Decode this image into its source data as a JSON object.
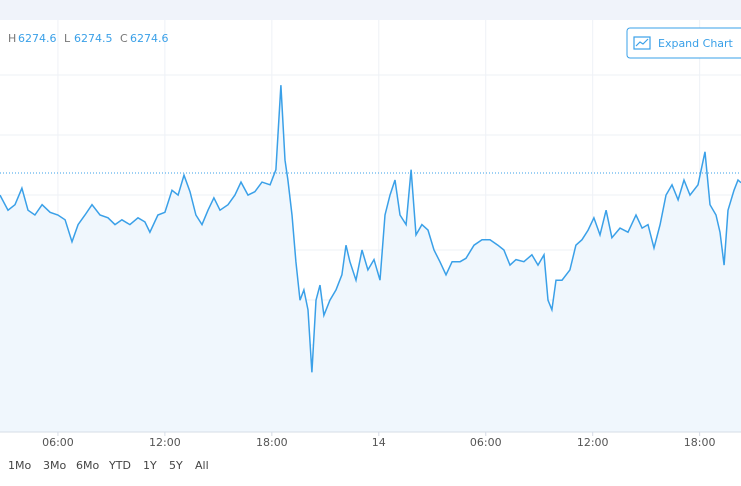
{
  "chart_data": {
    "type": "line",
    "color": "#3aa0e8",
    "fill": "#f0f7fd",
    "grid": true,
    "xlim": [
      2.75,
      44.32
    ],
    "ylim": [
      6237,
      6297
    ],
    "xticks": [
      {
        "value": 6,
        "label": "06:00"
      },
      {
        "value": 12,
        "label": "12:00"
      },
      {
        "value": 18,
        "label": "18:00"
      },
      {
        "value": 24,
        "label": "14"
      },
      {
        "value": 30,
        "label": "06:00"
      },
      {
        "value": 36,
        "label": "12:00"
      },
      {
        "value": 42,
        "label": "18:00"
      }
    ],
    "x": [
      2.75,
      3.2,
      3.59,
      3.98,
      4.32,
      4.71,
      5.11,
      5.56,
      6.0,
      6.4,
      6.79,
      7.13,
      7.52,
      7.91,
      8.36,
      8.81,
      9.2,
      9.59,
      10.04,
      10.49,
      10.88,
      11.16,
      11.61,
      12.0,
      12.4,
      12.74,
      13.07,
      13.41,
      13.74,
      14.08,
      14.42,
      14.75,
      15.09,
      15.54,
      15.93,
      16.27,
      16.66,
      17.05,
      17.45,
      17.9,
      18.23,
      18.51,
      18.74,
      18.9,
      19.13,
      19.35,
      19.58,
      19.8,
      20.03,
      20.25,
      20.48,
      20.7,
      20.92,
      21.26,
      21.6,
      21.93,
      22.16,
      22.38,
      22.72,
      23.06,
      23.39,
      23.73,
      24.07,
      24.35,
      24.63,
      24.91,
      25.19,
      25.53,
      25.81,
      26.09,
      26.42,
      26.76,
      27.1,
      27.43,
      27.77,
      28.11,
      28.56,
      28.89,
      29.34,
      29.79,
      30.24,
      30.68,
      31.02,
      31.36,
      31.7,
      32.14,
      32.59,
      32.93,
      33.27,
      33.49,
      33.71,
      33.94,
      34.28,
      34.72,
      35.06,
      35.4,
      35.74,
      36.07,
      36.41,
      36.75,
      37.08,
      37.53,
      37.98,
      38.43,
      38.77,
      39.1,
      39.44,
      39.78,
      40.11,
      40.45,
      40.79,
      41.12,
      41.46,
      41.91,
      42.3,
      42.58,
      42.92,
      43.14,
      43.37,
      43.59,
      43.93,
      44.15,
      44.32
    ],
    "values": [
      6271.5,
      6269.3,
      6270.1,
      6272.5,
      6269.3,
      6268.6,
      6270.1,
      6269.0,
      6268.6,
      6267.9,
      6264.7,
      6267.2,
      6268.6,
      6270.1,
      6268.6,
      6268.2,
      6267.2,
      6267.9,
      6267.2,
      6268.2,
      6267.6,
      6266.1,
      6268.6,
      6269.0,
      6272.2,
      6271.5,
      6274.4,
      6272.0,
      6268.6,
      6267.2,
      6269.3,
      6271.1,
      6269.3,
      6270.1,
      6271.5,
      6273.4,
      6271.5,
      6272.0,
      6273.4,
      6273.0,
      6275.2,
      6287.5,
      6276.6,
      6273.7,
      6268.6,
      6261.8,
      6256.2,
      6257.7,
      6254.8,
      6245.7,
      6256.2,
      6258.4,
      6254.0,
      6256.2,
      6257.7,
      6259.9,
      6264.2,
      6261.8,
      6259.1,
      6263.5,
      6260.6,
      6262.1,
      6259.1,
      6268.6,
      6271.5,
      6273.7,
      6268.6,
      6267.2,
      6275.2,
      6265.7,
      6267.2,
      6266.4,
      6263.5,
      6261.8,
      6259.9,
      6261.8,
      6261.8,
      6262.3,
      6264.2,
      6265.0,
      6265.0,
      6264.2,
      6263.5,
      6261.3,
      6262.1,
      6261.8,
      6262.8,
      6261.3,
      6262.8,
      6256.2,
      6254.8,
      6259.1,
      6259.1,
      6260.6,
      6264.2,
      6265.0,
      6266.4,
      6268.2,
      6265.7,
      6269.3,
      6265.3,
      6266.7,
      6266.1,
      6268.6,
      6266.7,
      6267.2,
      6263.8,
      6267.2,
      6271.5,
      6273.0,
      6270.8,
      6273.7,
      6271.5,
      6273.0,
      6277.8,
      6270.1,
      6268.6,
      6266.1,
      6261.3,
      6269.3,
      6272.2,
      6273.7,
      6273.3
    ]
  },
  "header": {
    "ohlc": [
      {
        "key": "H",
        "value": "6274.6"
      },
      {
        "key": "L",
        "value": "6274.5"
      },
      {
        "key": "C",
        "value": "6274.6"
      }
    ]
  },
  "expand_button": "Expand Chart",
  "ranges": [
    "1Mo",
    "3Mo",
    "6Mo",
    "YTD",
    "1Y",
    "5Y",
    "All"
  ]
}
